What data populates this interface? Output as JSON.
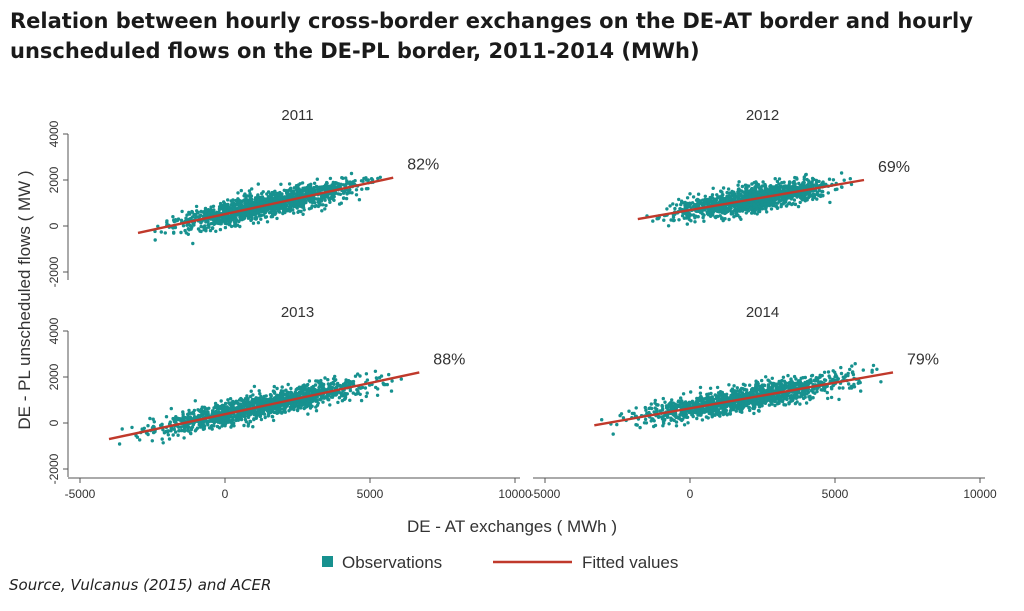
{
  "title": "Relation between hourly cross-border exchanges on the DE-AT border and hourly unscheduled flows on the DE-PL border, 2011-2014 (MWh)",
  "source": "Source, Vulcanus (2015) and ACER",
  "colors": {
    "observations": "#17918f",
    "fitted": "#c0392b"
  },
  "chart_data": {
    "type": "scatter",
    "xlabel": "DE - AT exchanges ( MWh )",
    "ylabel": "DE - PL unscheduled flows ( MW )",
    "xlim": [
      -5000,
      10000
    ],
    "ylim": [
      -2000,
      4000
    ],
    "x_ticks": [
      -5000,
      0,
      5000,
      10000
    ],
    "y_ticks": [
      -2000,
      0,
      2000,
      4000
    ],
    "legend": {
      "placement": "bottom",
      "entries": [
        "Observations",
        "Fitted values"
      ]
    },
    "panels": [
      {
        "title": "2011",
        "annotation": "82%",
        "obs_x_range": [
          -3000,
          5800
        ],
        "fit": {
          "x": [
            -3000,
            5800
          ],
          "y": [
            -300,
            2100
          ]
        }
      },
      {
        "title": "2012",
        "annotation": "69%",
        "obs_x_range": [
          -1800,
          6000
        ],
        "fit": {
          "x": [
            -1800,
            6000
          ],
          "y": [
            300,
            2000
          ]
        }
      },
      {
        "title": "2013",
        "annotation": "88%",
        "obs_x_range": [
          -4000,
          6700
        ],
        "fit": {
          "x": [
            -4000,
            6700
          ],
          "y": [
            -700,
            2200
          ]
        }
      },
      {
        "title": "2014",
        "annotation": "79%",
        "obs_x_range": [
          -3300,
          7000
        ],
        "fit": {
          "x": [
            -3300,
            7000
          ],
          "y": [
            -100,
            2200
          ]
        }
      }
    ]
  }
}
